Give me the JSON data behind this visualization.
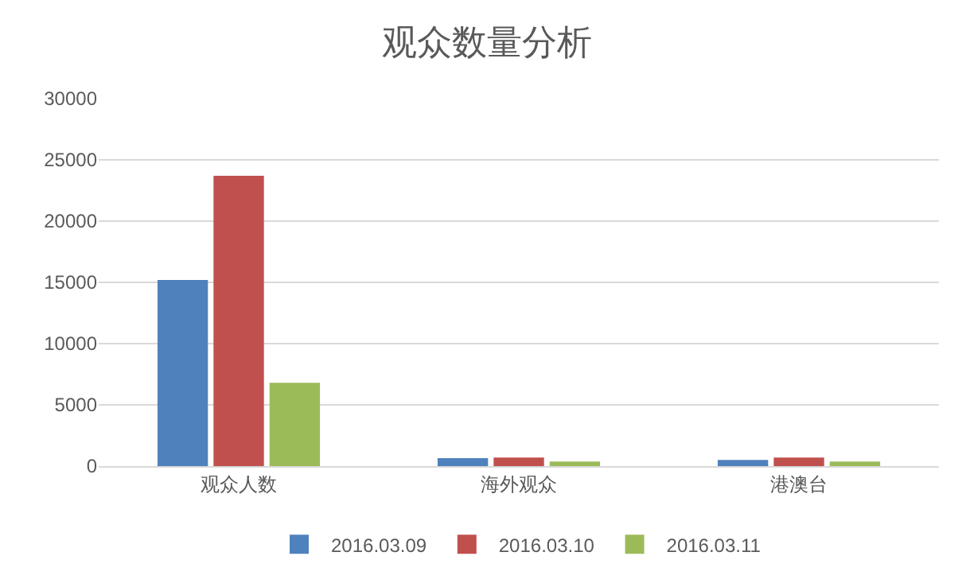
{
  "chart_data": {
    "type": "bar",
    "title": "观众数量分析",
    "categories": [
      "观众人数",
      "海外观众",
      "港澳台"
    ],
    "series": [
      {
        "name": "2016.03.09",
        "color": "#4f81bd",
        "values": [
          15200,
          650,
          510
        ]
      },
      {
        "name": "2016.03.10",
        "color": "#c0504d",
        "values": [
          23700,
          700,
          700
        ]
      },
      {
        "name": "2016.03.11",
        "color": "#9bbb59",
        "values": [
          6800,
          370,
          370
        ]
      }
    ],
    "ylim": [
      0,
      30000
    ],
    "yticks": [
      0,
      5000,
      10000,
      15000,
      20000,
      25000,
      30000
    ],
    "grid": "y",
    "legend": "bottom"
  }
}
